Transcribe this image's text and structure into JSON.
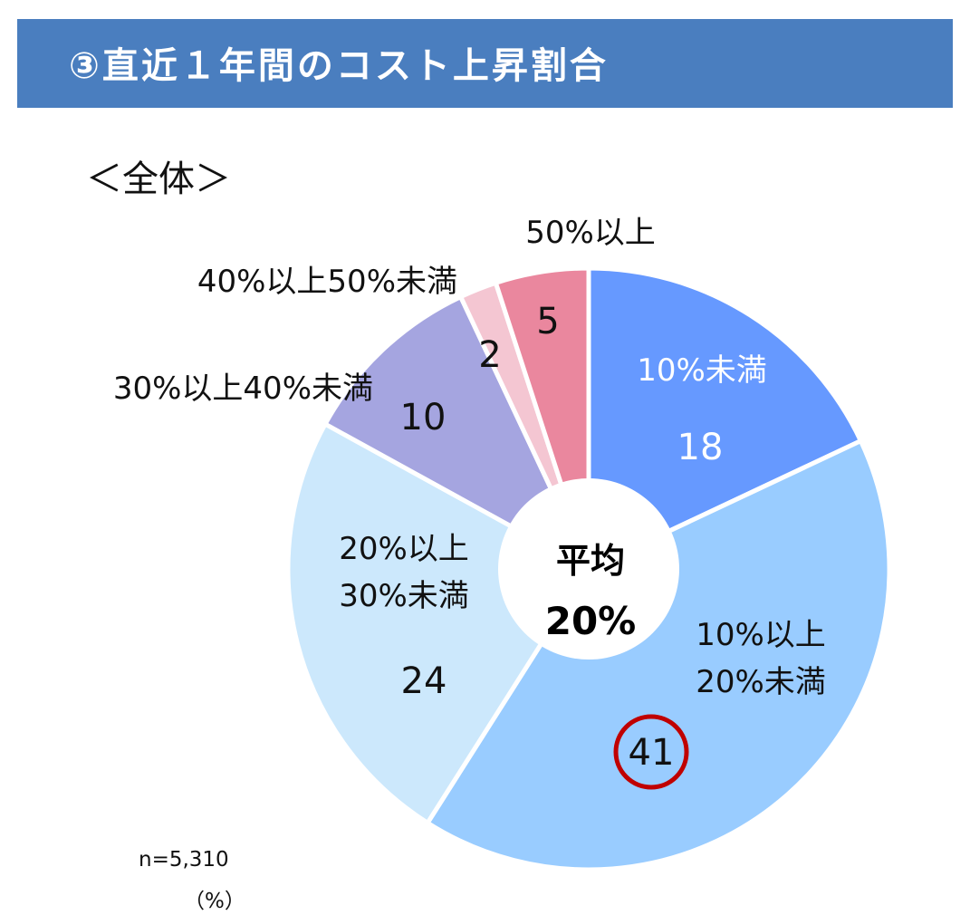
{
  "header": {
    "title": "③直近１年間のコスト上昇割合"
  },
  "subtitle": "＜全体＞",
  "chart_data": {
    "type": "pie",
    "variant": "donut",
    "categories": [
      "10%未満",
      "10%以上20%未満",
      "20%以上30%未満",
      "30%以上40%未満",
      "40%以上50%未満",
      "50%以上"
    ],
    "category_label_lines": [
      [
        "10%未満"
      ],
      [
        "10%以上",
        "20%未満"
      ],
      [
        "20%以上",
        "30%未満"
      ],
      [
        "30%以上40%未満"
      ],
      [
        "40%以上50%未満"
      ],
      [
        "50%以上"
      ]
    ],
    "values": [
      18,
      41,
      24,
      10,
      2,
      5
    ],
    "value_labels": [
      "18",
      "41",
      "24",
      "10",
      "2",
      "5"
    ],
    "colors": [
      "#6699ff",
      "#99ccff",
      "#cce8fc",
      "#a5a5e0",
      "#f4c6d2",
      "#ea879e"
    ],
    "highlighted": "41",
    "highlight_color": "#c00000",
    "center_label": [
      "平均",
      "20%"
    ],
    "sample_size": "n=5,310",
    "unit": "（%）"
  }
}
